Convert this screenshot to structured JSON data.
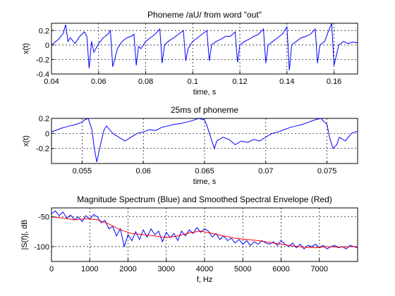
{
  "chart_data": [
    {
      "type": "line",
      "title": "Phoneme /aU/ from word \"out\"",
      "xlabel": "time, s",
      "ylabel": "x(t)",
      "xlim": [
        0.04,
        0.17
      ],
      "ylim": [
        -0.4,
        0.3
      ],
      "xticks": [
        0.04,
        0.06,
        0.08,
        0.1,
        0.12,
        0.14,
        0.16
      ],
      "xtick_labels": [
        "0.04",
        "0.06",
        "0.08",
        "0.1",
        "0.12",
        "0.14",
        "0.16"
      ],
      "yticks": [
        -0.4,
        -0.2,
        0,
        0.2
      ],
      "ytick_labels": [
        "-0.4",
        "-0.2",
        "0",
        "0.2"
      ],
      "grid": true,
      "series": [
        {
          "color": "#0000ff",
          "x": [
            0.04,
            0.043,
            0.045,
            0.046,
            0.047,
            0.048,
            0.05,
            0.052,
            0.054,
            0.055,
            0.056,
            0.057,
            0.058,
            0.06,
            0.062,
            0.064,
            0.065,
            0.066,
            0.068,
            0.07,
            0.072,
            0.074,
            0.075,
            0.076,
            0.077,
            0.078,
            0.08,
            0.082,
            0.084,
            0.086,
            0.087,
            0.088,
            0.09,
            0.092,
            0.094,
            0.096,
            0.097,
            0.098,
            0.1,
            0.102,
            0.104,
            0.106,
            0.107,
            0.108,
            0.11,
            0.112,
            0.114,
            0.116,
            0.118,
            0.119,
            0.12,
            0.122,
            0.124,
            0.126,
            0.128,
            0.13,
            0.131,
            0.132,
            0.134,
            0.136,
            0.138,
            0.14,
            0.141,
            0.142,
            0.144,
            0.146,
            0.148,
            0.15,
            0.152,
            0.153,
            0.154,
            0.156,
            0.158,
            0.159,
            0.16,
            0.162,
            0.164,
            0.166,
            0.168,
            0.17
          ],
          "y": [
            0.0,
            0.08,
            0.16,
            0.28,
            0.05,
            0.1,
            0.02,
            0.12,
            0.18,
            0.12,
            -0.32,
            0.05,
            -0.1,
            0.02,
            0.1,
            0.15,
            0.2,
            -0.3,
            -0.05,
            0.05,
            0.1,
            0.12,
            0.15,
            -0.28,
            -0.02,
            -0.05,
            0.05,
            0.1,
            0.15,
            0.22,
            -0.25,
            0.0,
            0.06,
            0.1,
            0.15,
            0.2,
            -0.22,
            -0.05,
            0.05,
            0.1,
            0.15,
            0.2,
            -0.22,
            0.0,
            0.05,
            0.08,
            0.12,
            0.12,
            0.18,
            -0.24,
            0.0,
            0.05,
            0.08,
            0.12,
            0.15,
            0.22,
            -0.25,
            0.0,
            0.05,
            0.1,
            0.15,
            0.25,
            -0.35,
            0.0,
            0.05,
            0.1,
            0.12,
            0.15,
            0.22,
            -0.25,
            0.0,
            0.05,
            0.22,
            0.3,
            -0.28,
            0.0,
            0.05,
            0.02,
            0.04,
            0.03
          ]
        }
      ]
    },
    {
      "type": "line",
      "title": "25ms of phoneme",
      "xlabel": "time, s",
      "ylabel": "x(t)",
      "xlim": [
        0.0525,
        0.0775
      ],
      "ylim": [
        -0.4,
        0.2
      ],
      "xticks": [
        0.055,
        0.06,
        0.065,
        0.07,
        0.075
      ],
      "xtick_labels": [
        "0.055",
        "0.06",
        "0.065",
        "0.07",
        "0.075"
      ],
      "yticks": [
        -0.2,
        0,
        0.2
      ],
      "ytick_labels": [
        "-0.2",
        "0",
        "0.2"
      ],
      "grid": true,
      "series": [
        {
          "color": "#0000ff",
          "x": [
            0.0525,
            0.053,
            0.0535,
            0.054,
            0.0545,
            0.055,
            0.0552,
            0.0555,
            0.0558,
            0.056,
            0.0562,
            0.0565,
            0.0568,
            0.057,
            0.0575,
            0.058,
            0.0585,
            0.059,
            0.0595,
            0.06,
            0.0605,
            0.061,
            0.0615,
            0.062,
            0.0625,
            0.063,
            0.0635,
            0.064,
            0.0645,
            0.065,
            0.0652,
            0.0655,
            0.0658,
            0.066,
            0.0665,
            0.067,
            0.0675,
            0.068,
            0.0685,
            0.069,
            0.0695,
            0.07,
            0.0705,
            0.071,
            0.0715,
            0.072,
            0.0725,
            0.073,
            0.0735,
            0.074,
            0.0745,
            0.075,
            0.0752,
            0.0755,
            0.0758,
            0.076,
            0.0765,
            0.077,
            0.0775
          ],
          "y": [
            0.02,
            0.05,
            0.08,
            0.1,
            0.12,
            0.15,
            0.18,
            0.2,
            0.05,
            -0.2,
            -0.38,
            -0.15,
            0.05,
            0.1,
            0.0,
            -0.05,
            -0.1,
            -0.05,
            0.0,
            0.02,
            0.05,
            0.04,
            0.08,
            0.1,
            0.12,
            0.13,
            0.15,
            0.17,
            0.2,
            0.18,
            0.1,
            -0.05,
            -0.2,
            -0.1,
            -0.05,
            -0.08,
            -0.15,
            -0.1,
            -0.12,
            -0.08,
            -0.1,
            -0.05,
            0.0,
            0.02,
            0.05,
            0.08,
            0.1,
            0.12,
            0.15,
            0.18,
            0.2,
            0.12,
            -0.05,
            -0.2,
            -0.15,
            -0.05,
            -0.1,
            0.0,
            0.03
          ]
        }
      ]
    },
    {
      "type": "line",
      "title": "Magnitude Spectrum (Blue) and Smoothed Spectral Envelope (Red)",
      "xlabel": "f, Hz",
      "ylabel": "|S(f)|, dB",
      "xlim": [
        0,
        8000
      ],
      "ylim": [
        -125,
        -35
      ],
      "xticks": [
        0,
        1000,
        2000,
        3000,
        4000,
        5000,
        6000,
        7000
      ],
      "xtick_labels": [
        "0",
        "1000",
        "2000",
        "3000",
        "4000",
        "5000",
        "6000",
        "7000"
      ],
      "yticks": [
        -100,
        -50
      ],
      "ytick_labels": [
        "-100",
        "-50"
      ],
      "grid": true,
      "series": [
        {
          "color": "#0000ff",
          "x": [
            0,
            100,
            200,
            300,
            400,
            500,
            600,
            700,
            800,
            900,
            1000,
            1100,
            1200,
            1300,
            1400,
            1500,
            1600,
            1700,
            1800,
            1900,
            2000,
            2100,
            2200,
            2300,
            2400,
            2500,
            2600,
            2700,
            2800,
            2900,
            3000,
            3100,
            3200,
            3300,
            3400,
            3500,
            3600,
            3700,
            3800,
            3900,
            4000,
            4100,
            4200,
            4300,
            4400,
            4500,
            4600,
            4700,
            4800,
            4900,
            5000,
            5100,
            5200,
            5300,
            5400,
            5500,
            5600,
            5700,
            5800,
            5900,
            6000,
            6100,
            6200,
            6300,
            6400,
            6500,
            6600,
            6700,
            6800,
            6900,
            7000,
            7100,
            7200,
            7300,
            7400,
            7500,
            7600,
            7700,
            7800,
            7900,
            8000
          ],
          "y": [
            -45,
            -40,
            -48,
            -42,
            -52,
            -47,
            -55,
            -50,
            -58,
            -48,
            -54,
            -46,
            -50,
            -60,
            -56,
            -70,
            -66,
            -82,
            -70,
            -100,
            -80,
            -90,
            -75,
            -88,
            -72,
            -84,
            -70,
            -80,
            -74,
            -92,
            -76,
            -85,
            -78,
            -90,
            -74,
            -82,
            -72,
            -78,
            -68,
            -76,
            -70,
            -74,
            -84,
            -78,
            -88,
            -82,
            -90,
            -86,
            -94,
            -88,
            -96,
            -90,
            -98,
            -92,
            -96,
            -90,
            -94,
            -96,
            -92,
            -98,
            -90,
            -96,
            -100,
            -94,
            -102,
            -96,
            -104,
            -98,
            -100,
            -96,
            -102,
            -98,
            -104,
            -100,
            -98,
            -102,
            -100,
            -104,
            -98,
            -100,
            -102
          ]
        },
        {
          "color": "#ff0000",
          "x": [
            0,
            300,
            600,
            900,
            1200,
            1500,
            1800,
            2100,
            2400,
            2700,
            3000,
            3300,
            3600,
            3900,
            4200,
            4500,
            4800,
            5100,
            5400,
            5700,
            6000,
            6300,
            6600,
            6900,
            7200,
            7500,
            7800,
            8000
          ],
          "y": [
            -50,
            -52,
            -55,
            -53,
            -55,
            -62,
            -72,
            -78,
            -80,
            -82,
            -85,
            -82,
            -77,
            -74,
            -78,
            -82,
            -86,
            -88,
            -90,
            -93,
            -96,
            -99,
            -101,
            -102,
            -100,
            -101,
            -100,
            -100
          ]
        }
      ]
    }
  ]
}
